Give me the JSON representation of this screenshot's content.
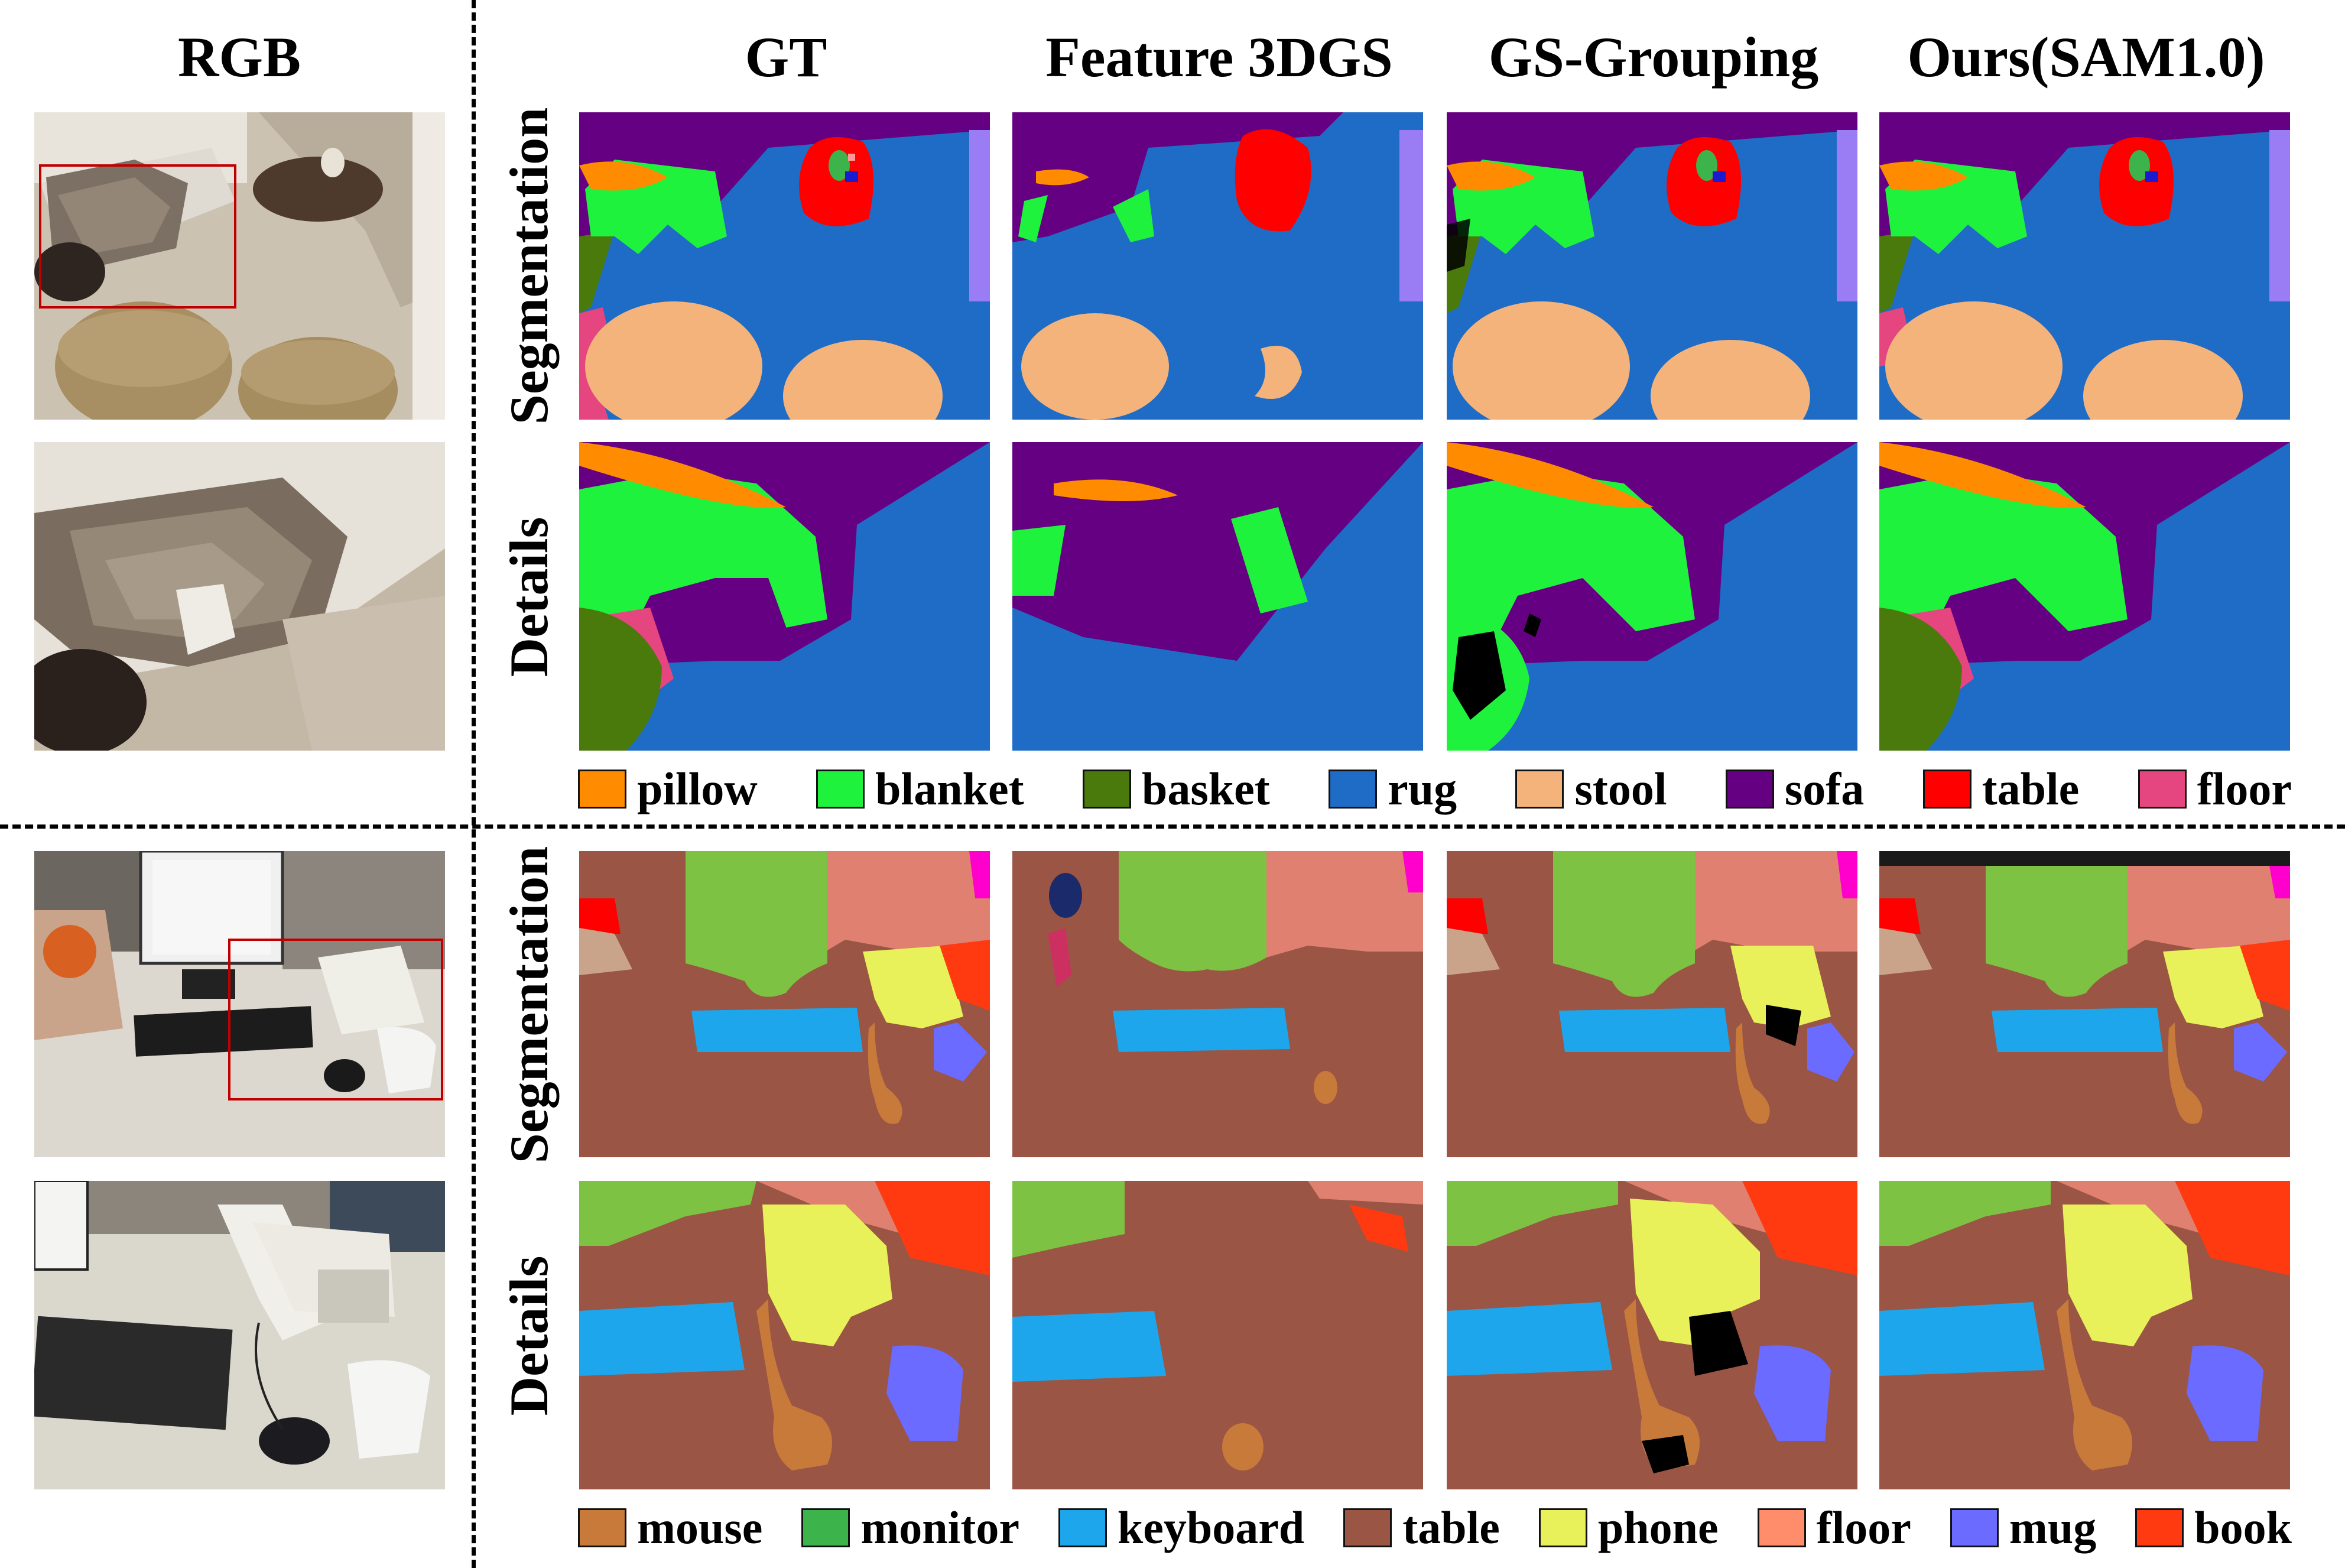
{
  "headers": {
    "rgb": "RGB",
    "gt": "GT",
    "feature3dgs": "Feature 3DGS",
    "gsgrouping": "GS-Grouping",
    "ours": "Ours(SAM1.0)"
  },
  "row_labels": {
    "segmentation": "Segmentation",
    "details": "Details"
  },
  "legend_top": [
    {
      "label": "pillow",
      "color": "#ff8c00"
    },
    {
      "label": "blanket",
      "color": "#1ff23c"
    },
    {
      "label": "basket",
      "color": "#4a7a0c"
    },
    {
      "label": "rug",
      "color": "#1f6cc7"
    },
    {
      "label": "stool",
      "color": "#f4b37a"
    },
    {
      "label": "sofa",
      "color": "#660082"
    },
    {
      "label": "table",
      "color": "#ff0000"
    },
    {
      "label": "floor",
      "color": "#e6467f"
    }
  ],
  "legend_bottom": [
    {
      "label": "mouse",
      "color": "#c87a3b"
    },
    {
      "label": "monitor",
      "color": "#3cb44b"
    },
    {
      "label": "keyboard",
      "color": "#1ea6ec"
    },
    {
      "label": "table",
      "color": "#9a5544"
    },
    {
      "label": "phone",
      "color": "#e8f05a"
    },
    {
      "label": "floor",
      "color": "#ff8c6a"
    },
    {
      "label": "mug",
      "color": "#6b6bff"
    },
    {
      "label": "book",
      "color": "#ff3a10"
    }
  ]
}
